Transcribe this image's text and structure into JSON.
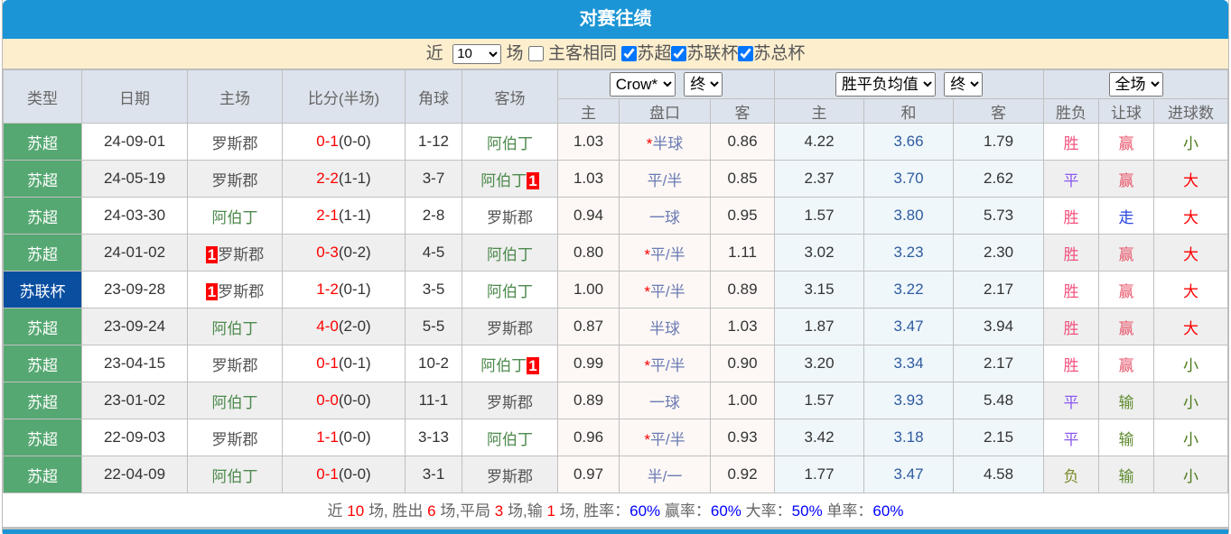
{
  "title": "对赛往绩",
  "filter": {
    "near": "近",
    "count": "10",
    "games": "场",
    "same_home": "主客相同",
    "same_home_checked": false,
    "leagues": [
      {
        "label": "苏超",
        "checked": true
      },
      {
        "label": "苏联杯",
        "checked": true
      },
      {
        "label": "苏总杯",
        "checked": true
      }
    ]
  },
  "headers": {
    "type": "类型",
    "date": "日期",
    "home": "主场",
    "score": "比分(半场)",
    "corner": "角球",
    "away": "客场",
    "company": "Crow*",
    "odds_stage": "终",
    "eu_type": "胜平负均值",
    "eu_stage": "终",
    "period": "全场",
    "ah_home": "主",
    "ah_line": "盘口",
    "ah_away": "客",
    "eu_home": "主",
    "eu_draw": "和",
    "eu_away": "客",
    "result": "胜负",
    "handicap": "让球",
    "goals": "进球数"
  },
  "rows": [
    {
      "type": "苏超",
      "date": "24-09-01",
      "home": "罗斯郡",
      "home_card": "",
      "ft": "0-1",
      "ht": "(0-0)",
      "corner": "1-12",
      "away": "阿伯丁",
      "away_card": "",
      "ah_h": "1.03",
      "star": "*",
      "line": "半球",
      "ah_a": "0.86",
      "eu_h": "4.22",
      "eu_d": "3.66",
      "eu_a": "1.79",
      "res": "胜",
      "hcp": "赢",
      "goals": "小"
    },
    {
      "type": "苏超",
      "date": "24-05-19",
      "home": "罗斯郡",
      "home_card": "",
      "ft": "2-2",
      "ht": "(1-1)",
      "corner": "3-7",
      "away": "阿伯丁",
      "away_card": "1",
      "ah_h": "1.03",
      "star": "",
      "line": "平/半",
      "ah_a": "0.85",
      "eu_h": "2.37",
      "eu_d": "3.70",
      "eu_a": "2.62",
      "res": "平",
      "hcp": "赢",
      "goals": "大"
    },
    {
      "type": "苏超",
      "date": "24-03-30",
      "home": "阿伯丁",
      "home_card": "",
      "ft": "2-1",
      "ht": "(1-1)",
      "corner": "2-8",
      "away": "罗斯郡",
      "away_card": "",
      "ah_h": "0.94",
      "star": "",
      "line": "一球",
      "ah_a": "0.95",
      "eu_h": "1.57",
      "eu_d": "3.80",
      "eu_a": "5.73",
      "res": "胜",
      "hcp": "走",
      "goals": "大"
    },
    {
      "type": "苏超",
      "date": "24-01-02",
      "home": "罗斯郡",
      "home_card": "1",
      "ft": "0-3",
      "ht": "(0-2)",
      "corner": "4-5",
      "away": "阿伯丁",
      "away_card": "",
      "ah_h": "0.80",
      "star": "*",
      "line": "平/半",
      "ah_a": "1.11",
      "eu_h": "3.02",
      "eu_d": "3.23",
      "eu_a": "2.30",
      "res": "胜",
      "hcp": "赢",
      "goals": "大"
    },
    {
      "type": "苏联杯",
      "date": "23-09-28",
      "home": "罗斯郡",
      "home_card": "1",
      "ft": "1-2",
      "ht": "(0-1)",
      "corner": "3-5",
      "away": "阿伯丁",
      "away_card": "",
      "ah_h": "1.00",
      "star": "*",
      "line": "平/半",
      "ah_a": "0.89",
      "eu_h": "3.15",
      "eu_d": "3.22",
      "eu_a": "2.17",
      "res": "胜",
      "hcp": "赢",
      "goals": "大"
    },
    {
      "type": "苏超",
      "date": "23-09-24",
      "home": "阿伯丁",
      "home_card": "",
      "ft": "4-0",
      "ht": "(2-0)",
      "corner": "5-5",
      "away": "罗斯郡",
      "away_card": "",
      "ah_h": "0.87",
      "star": "",
      "line": "半球",
      "ah_a": "1.03",
      "eu_h": "1.87",
      "eu_d": "3.47",
      "eu_a": "3.94",
      "res": "胜",
      "hcp": "赢",
      "goals": "大"
    },
    {
      "type": "苏超",
      "date": "23-04-15",
      "home": "罗斯郡",
      "home_card": "",
      "ft": "0-1",
      "ht": "(0-1)",
      "corner": "10-2",
      "away": "阿伯丁",
      "away_card": "1",
      "ah_h": "0.99",
      "star": "*",
      "line": "平/半",
      "ah_a": "0.90",
      "eu_h": "3.20",
      "eu_d": "3.34",
      "eu_a": "2.17",
      "res": "胜",
      "hcp": "赢",
      "goals": "小"
    },
    {
      "type": "苏超",
      "date": "23-01-02",
      "home": "阿伯丁",
      "home_card": "",
      "ft": "0-0",
      "ht": "(0-0)",
      "corner": "11-1",
      "away": "罗斯郡",
      "away_card": "",
      "ah_h": "0.89",
      "star": "",
      "line": "一球",
      "ah_a": "1.00",
      "eu_h": "1.57",
      "eu_d": "3.93",
      "eu_a": "5.48",
      "res": "平",
      "hcp": "输",
      "goals": "小"
    },
    {
      "type": "苏超",
      "date": "22-09-03",
      "home": "罗斯郡",
      "home_card": "",
      "ft": "1-1",
      "ht": "(0-0)",
      "corner": "3-13",
      "away": "阿伯丁",
      "away_card": "",
      "ah_h": "0.96",
      "star": "*",
      "line": "平/半",
      "ah_a": "0.93",
      "eu_h": "3.42",
      "eu_d": "3.18",
      "eu_a": "2.15",
      "res": "平",
      "hcp": "输",
      "goals": "小"
    },
    {
      "type": "苏超",
      "date": "22-04-09",
      "home": "阿伯丁",
      "home_card": "",
      "ft": "0-1",
      "ht": "(0-0)",
      "corner": "3-1",
      "away": "罗斯郡",
      "away_card": "",
      "ah_h": "0.97",
      "star": "",
      "line": "半/一",
      "ah_a": "0.92",
      "eu_h": "1.77",
      "eu_d": "3.47",
      "eu_a": "4.58",
      "res": "负",
      "hcp": "输",
      "goals": "小"
    }
  ],
  "summary": {
    "t1": "近",
    "games": "10",
    "t2": "场, 胜出",
    "wins": "6",
    "t3": "场,平局",
    "draws": "3",
    "t4": "场,输",
    "losses": "1",
    "t5": "场, 胜率：",
    "win_rate": "60%",
    "t6": "赢率：",
    "cover_rate": "60%",
    "t7": "大率：",
    "over_rate": "50%",
    "t8": "单率：",
    "odd_rate": "60%"
  }
}
